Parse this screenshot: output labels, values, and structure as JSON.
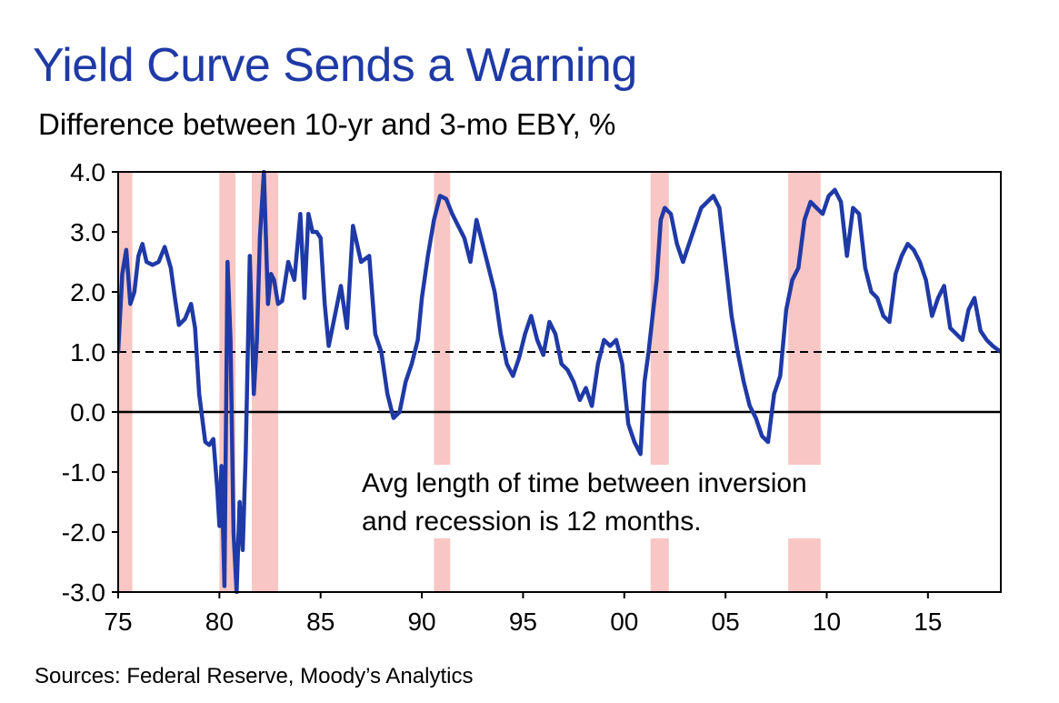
{
  "title": "Yield Curve Sends a Warning",
  "subtitle": "Difference between 10-yr and 3-mo EBY, %",
  "source": "Sources: Federal Reserve, Moody’s Analytics",
  "colors": {
    "title": "#1f3aa6",
    "line": "#1f3aa6",
    "recession": "#f8c6c4",
    "reference": "#000000"
  },
  "chart_data": {
    "type": "line",
    "title": "Yield Curve Sends a Warning",
    "subtitle": "Difference between 10-yr and 3-mo EBY, %",
    "xlabel": "",
    "ylabel": "",
    "xlim": [
      1975,
      2018.6
    ],
    "ylim": [
      -3.0,
      4.0
    ],
    "y_ticks": [
      -3,
      -2,
      -1,
      0,
      1,
      2,
      3,
      4
    ],
    "y_tick_labels": [
      "-3.0",
      "-2.0",
      "-1.0",
      "0.0",
      "1.0",
      "2.0",
      "3.0",
      "4.0"
    ],
    "x_ticks": [
      1975,
      1980,
      1985,
      1990,
      1995,
      2000,
      2005,
      2010,
      2015
    ],
    "x_tick_labels": [
      "75",
      "80",
      "85",
      "90",
      "95",
      "00",
      "05",
      "10",
      "15"
    ],
    "reference_lines": [
      {
        "y": 0.0,
        "style": "solid"
      },
      {
        "y": 1.0,
        "style": "dashed"
      }
    ],
    "recessions": [
      [
        1975.0,
        1975.7
      ],
      [
        1980.0,
        1980.8
      ],
      [
        1981.6,
        1982.9
      ],
      [
        1990.6,
        1991.4
      ],
      [
        2001.3,
        2002.2
      ],
      [
        2008.1,
        2009.7
      ]
    ],
    "annotation": [
      "Avg length of time between inversion",
      "and recession is 12 months."
    ],
    "series": [
      {
        "name": "10-yr minus 3-mo spread",
        "x": [
          1975.0,
          1975.2,
          1975.4,
          1975.6,
          1975.8,
          1976.0,
          1976.2,
          1976.4,
          1976.7,
          1977.0,
          1977.3,
          1977.6,
          1977.8,
          1978.0,
          1978.3,
          1978.6,
          1978.8,
          1979.0,
          1979.3,
          1979.5,
          1979.7,
          1979.9,
          1980.0,
          1980.1,
          1980.25,
          1980.4,
          1980.55,
          1980.7,
          1980.85,
          1981.0,
          1981.15,
          1981.3,
          1981.5,
          1981.7,
          1981.85,
          1982.0,
          1982.2,
          1982.4,
          1982.55,
          1982.7,
          1982.9,
          1983.1,
          1983.4,
          1983.7,
          1984.0,
          1984.2,
          1984.4,
          1984.6,
          1984.8,
          1985.0,
          1985.2,
          1985.4,
          1985.7,
          1986.0,
          1986.3,
          1986.6,
          1987.0,
          1987.4,
          1987.7,
          1988.0,
          1988.3,
          1988.6,
          1988.9,
          1989.2,
          1989.5,
          1989.8,
          1990.0,
          1990.3,
          1990.6,
          1990.9,
          1991.2,
          1991.5,
          1991.8,
          1992.1,
          1992.4,
          1992.7,
          1993.0,
          1993.3,
          1993.6,
          1993.9,
          1994.2,
          1994.5,
          1994.8,
          1995.1,
          1995.4,
          1995.7,
          1996.0,
          1996.3,
          1996.6,
          1996.9,
          1997.2,
          1997.5,
          1997.8,
          1998.1,
          1998.4,
          1998.7,
          1999.0,
          1999.3,
          1999.6,
          1999.9,
          2000.2,
          2000.5,
          2000.8,
          2001.0,
          2001.2,
          2001.4,
          2001.6,
          2001.8,
          2002.0,
          2002.3,
          2002.6,
          2002.9,
          2003.2,
          2003.5,
          2003.8,
          2004.1,
          2004.4,
          2004.7,
          2005.0,
          2005.3,
          2005.6,
          2005.9,
          2006.2,
          2006.5,
          2006.8,
          2007.1,
          2007.4,
          2007.7,
          2008.0,
          2008.3,
          2008.6,
          2008.9,
          2009.2,
          2009.5,
          2009.8,
          2010.1,
          2010.4,
          2010.7,
          2011.0,
          2011.3,
          2011.6,
          2011.9,
          2012.2,
          2012.5,
          2012.8,
          2013.1,
          2013.4,
          2013.7,
          2014.0,
          2014.3,
          2014.6,
          2014.9,
          2015.2,
          2015.5,
          2015.8,
          2016.1,
          2016.4,
          2016.7,
          2017.0,
          2017.3,
          2017.6,
          2017.9,
          2018.2,
          2018.6
        ],
        "values": [
          1.0,
          2.3,
          2.7,
          1.8,
          2.0,
          2.6,
          2.8,
          2.5,
          2.45,
          2.5,
          2.75,
          2.4,
          1.9,
          1.45,
          1.55,
          1.8,
          1.4,
          0.3,
          -0.5,
          -0.55,
          -0.45,
          -1.3,
          -1.9,
          -0.9,
          -2.9,
          2.5,
          1.2,
          -2.0,
          -3.0,
          -1.5,
          -2.3,
          -0.7,
          2.6,
          0.3,
          1.2,
          2.9,
          4.0,
          1.8,
          2.3,
          2.2,
          1.8,
          1.85,
          2.5,
          2.2,
          3.3,
          1.9,
          3.3,
          3.0,
          3.0,
          2.9,
          1.8,
          1.1,
          1.6,
          2.1,
          1.4,
          3.1,
          2.5,
          2.6,
          1.3,
          1.0,
          0.3,
          -0.1,
          0.0,
          0.5,
          0.8,
          1.2,
          1.9,
          2.6,
          3.2,
          3.6,
          3.55,
          3.3,
          3.1,
          2.9,
          2.5,
          3.2,
          2.8,
          2.4,
          2.0,
          1.3,
          0.8,
          0.6,
          0.9,
          1.3,
          1.6,
          1.2,
          0.95,
          1.5,
          1.3,
          0.8,
          0.7,
          0.5,
          0.2,
          0.4,
          0.1,
          0.8,
          1.2,
          1.1,
          1.2,
          0.8,
          -0.2,
          -0.5,
          -0.7,
          0.5,
          1.0,
          1.6,
          2.2,
          3.2,
          3.4,
          3.3,
          2.8,
          2.5,
          2.8,
          3.1,
          3.4,
          3.5,
          3.6,
          3.4,
          2.5,
          1.6,
          1.0,
          0.5,
          0.1,
          -0.1,
          -0.4,
          -0.5,
          0.3,
          0.6,
          1.7,
          2.2,
          2.4,
          3.2,
          3.5,
          3.4,
          3.3,
          3.6,
          3.7,
          3.5,
          2.6,
          3.4,
          3.3,
          2.4,
          2.0,
          1.9,
          1.6,
          1.5,
          2.3,
          2.6,
          2.8,
          2.7,
          2.5,
          2.2,
          1.6,
          1.9,
          2.1,
          1.4,
          1.3,
          1.2,
          1.7,
          1.9,
          1.35,
          1.2,
          1.1,
          1.0
        ]
      }
    ]
  }
}
